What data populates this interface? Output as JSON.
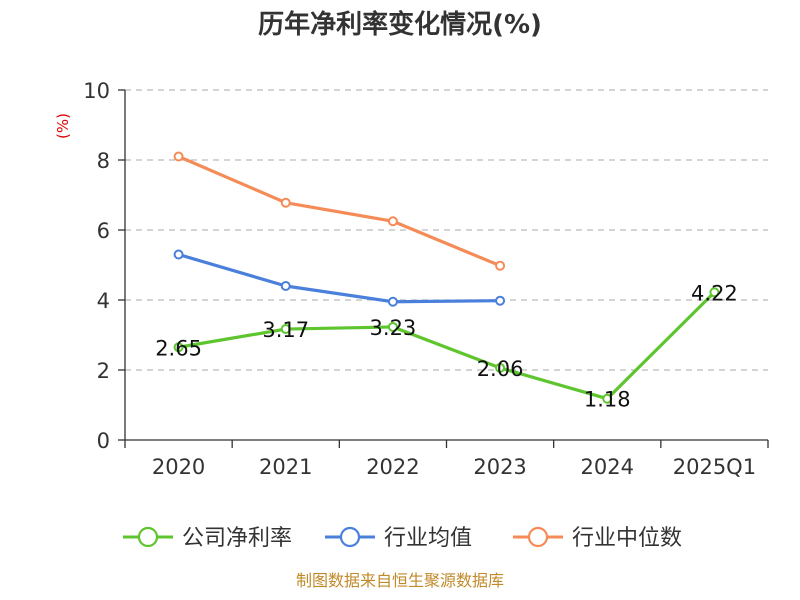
{
  "chart_data": {
    "type": "line",
    "title": "历年净利率变化情况(%)",
    "ylabel": "(%)",
    "ylim": [
      0,
      10
    ],
    "yticks": [
      0,
      2,
      4,
      6,
      8,
      10
    ],
    "categories": [
      "2020",
      "2021",
      "2022",
      "2023",
      "2024",
      "2025Q1"
    ],
    "grid": true,
    "legend_position": "bottom",
    "series": [
      {
        "name": "公司净利率",
        "color": "#5ec52f",
        "values": [
          2.65,
          3.17,
          3.23,
          2.06,
          1.18,
          4.22
        ],
        "data_labels": [
          "2.65",
          "3.17",
          "3.23",
          "2.06",
          "1.18",
          "4.22"
        ]
      },
      {
        "name": "行业均值",
        "color": "#4a7fdc",
        "values": [
          5.3,
          4.4,
          3.95,
          3.98,
          null,
          null
        ]
      },
      {
        "name": "行业中位数",
        "color": "#f58b56",
        "values": [
          8.1,
          6.78,
          6.25,
          4.98,
          null,
          null
        ]
      }
    ],
    "source": "制图数据来自恒生聚源数据库"
  }
}
